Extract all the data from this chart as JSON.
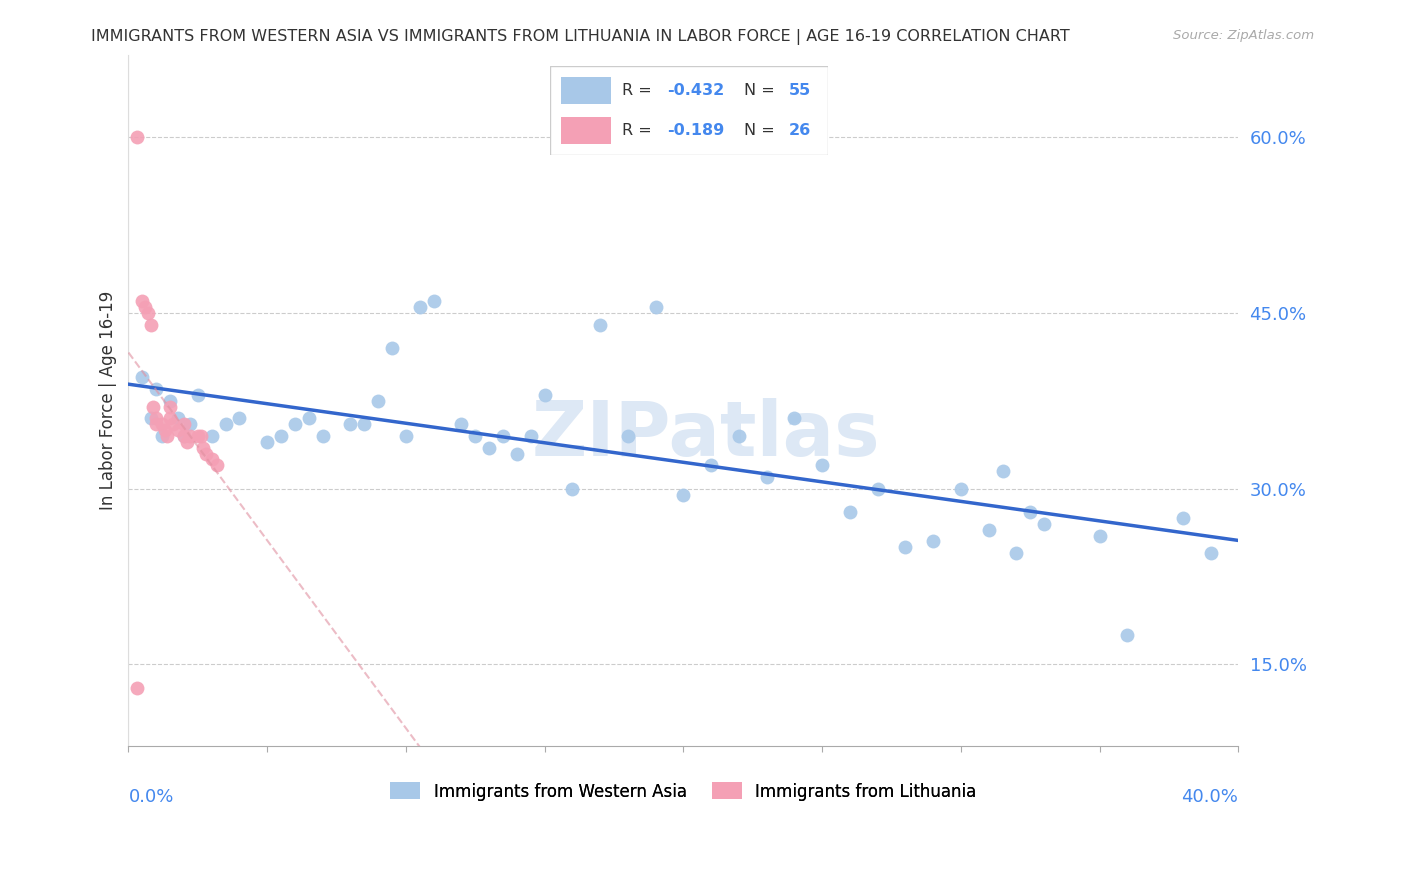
{
  "title": "IMMIGRANTS FROM WESTERN ASIA VS IMMIGRANTS FROM LITHUANIA IN LABOR FORCE | AGE 16-19 CORRELATION CHART",
  "source": "Source: ZipAtlas.com",
  "ylabel_ticks": [
    15.0,
    30.0,
    45.0,
    60.0
  ],
  "xlim": [
    0.0,
    0.4
  ],
  "ylim": [
    0.08,
    0.67
  ],
  "blue_label": "Immigrants from Western Asia",
  "pink_label": "Immigrants from Lithuania",
  "legend_blue_r_val": "-0.432",
  "legend_blue_n_val": "55",
  "legend_pink_r_val": "-0.189",
  "legend_pink_n_val": "26",
  "blue_color": "#a8c8e8",
  "pink_color": "#f4a0b5",
  "blue_line_color": "#3366cc",
  "pink_line_color": "#e090a0",
  "watermark": "ZIPatlas",
  "blue_scatter_x": [
    0.005,
    0.008,
    0.01,
    0.012,
    0.015,
    0.018,
    0.02,
    0.022,
    0.025,
    0.03,
    0.035,
    0.04,
    0.05,
    0.055,
    0.06,
    0.065,
    0.07,
    0.08,
    0.085,
    0.09,
    0.095,
    0.1,
    0.105,
    0.11,
    0.12,
    0.125,
    0.13,
    0.135,
    0.14,
    0.145,
    0.15,
    0.16,
    0.17,
    0.18,
    0.19,
    0.2,
    0.21,
    0.22,
    0.23,
    0.24,
    0.25,
    0.26,
    0.27,
    0.28,
    0.29,
    0.3,
    0.31,
    0.315,
    0.32,
    0.325,
    0.33,
    0.35,
    0.36,
    0.38,
    0.39
  ],
  "blue_scatter_y": [
    0.395,
    0.36,
    0.385,
    0.345,
    0.375,
    0.36,
    0.345,
    0.355,
    0.38,
    0.345,
    0.355,
    0.36,
    0.34,
    0.345,
    0.355,
    0.36,
    0.345,
    0.355,
    0.355,
    0.375,
    0.42,
    0.345,
    0.455,
    0.46,
    0.355,
    0.345,
    0.335,
    0.345,
    0.33,
    0.345,
    0.38,
    0.3,
    0.44,
    0.345,
    0.455,
    0.295,
    0.32,
    0.345,
    0.31,
    0.36,
    0.32,
    0.28,
    0.3,
    0.25,
    0.255,
    0.3,
    0.265,
    0.315,
    0.245,
    0.28,
    0.27,
    0.26,
    0.175,
    0.275,
    0.245
  ],
  "pink_scatter_x": [
    0.003,
    0.005,
    0.006,
    0.007,
    0.008,
    0.009,
    0.01,
    0.01,
    0.012,
    0.013,
    0.014,
    0.015,
    0.015,
    0.016,
    0.018,
    0.02,
    0.02,
    0.021,
    0.022,
    0.025,
    0.026,
    0.027,
    0.028,
    0.03,
    0.032,
    0.003
  ],
  "pink_scatter_y": [
    0.6,
    0.46,
    0.455,
    0.45,
    0.44,
    0.37,
    0.36,
    0.355,
    0.355,
    0.35,
    0.345,
    0.37,
    0.36,
    0.355,
    0.35,
    0.355,
    0.345,
    0.34,
    0.345,
    0.345,
    0.345,
    0.335,
    0.33,
    0.325,
    0.32,
    0.13
  ]
}
